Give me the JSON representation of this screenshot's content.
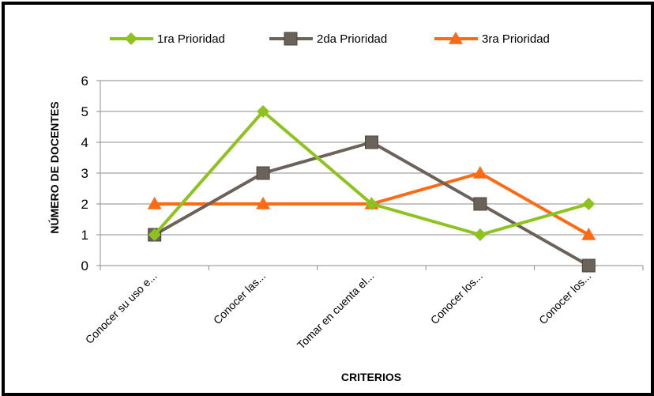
{
  "chart_data": {
    "type": "line",
    "title": "",
    "xlabel": "CRITERIOS",
    "ylabel": "NÚMERO DE DOCENTES",
    "categories": [
      "Conocer su uso e...",
      "Conocer las...",
      "Tomar en cuenta el...",
      "Conocer los...",
      "Conocer los..."
    ],
    "ylim": [
      0,
      6
    ],
    "yticks": [
      0,
      1,
      2,
      3,
      4,
      5,
      6
    ],
    "grid": true,
    "legend_position": "top",
    "series": [
      {
        "name": "1ra Prioridad",
        "values": [
          1,
          5,
          2,
          1,
          2
        ],
        "color": "#8DC21F",
        "marker": "diamond"
      },
      {
        "name": "2da Prioridad",
        "values": [
          1,
          3,
          4,
          2,
          0
        ],
        "color": "#6B625A",
        "marker": "square"
      },
      {
        "name": "3ra Prioridad",
        "values": [
          2,
          2,
          2,
          3,
          1
        ],
        "color": "#FF6A13",
        "marker": "triangle"
      }
    ]
  }
}
